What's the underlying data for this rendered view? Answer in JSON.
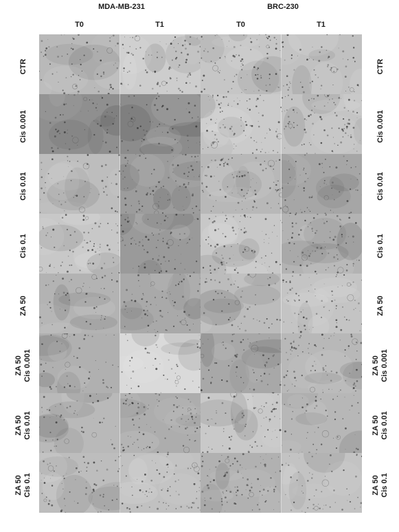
{
  "groups": [
    {
      "title": "MDA-MB-231",
      "columns": [
        "T0",
        "T1"
      ]
    },
    {
      "title": "BRC-230",
      "columns": [
        "T0",
        "T1"
      ]
    }
  ],
  "rows": [
    {
      "line1": "CTR",
      "line2": ""
    },
    {
      "line1": "Cis 0.001",
      "line2": ""
    },
    {
      "line1": "Cis 0.01",
      "line2": ""
    },
    {
      "line1": "Cis 0.1",
      "line2": ""
    },
    {
      "line1": "ZA 50",
      "line2": ""
    },
    {
      "line1": "ZA 50",
      "line2": "Cis 0.001"
    },
    {
      "line1": "ZA 50",
      "line2": "Cis 0.01"
    },
    {
      "line1": "ZA 50",
      "line2": "Cis 0.1"
    }
  ],
  "tones": [
    [
      "#b9b9b9",
      "#cdcdcd",
      "#c6c6c6",
      "#c1c1c1"
    ],
    [
      "#8f8f8f",
      "#8c8c8c",
      "#cbcbcb",
      "#c4c4c4"
    ],
    [
      "#bdbdbd",
      "#9c9c9c",
      "#b8b8b8",
      "#a6a6a6"
    ],
    [
      "#c8c8c8",
      "#9a9a9a",
      "#c8c8c8",
      "#b3b3b3"
    ],
    [
      "#b3b3b3",
      "#a9a9a9",
      "#bcbcbc",
      "#c4c4c4"
    ],
    [
      "#b0b0b0",
      "#dadada",
      "#a8a8a8",
      "#b8b8b8"
    ],
    [
      "#b9b9b9",
      "#adadad",
      "#c9c9c9",
      "#b7b7b7"
    ],
    [
      "#bdbdbd",
      "#c1c1c1",
      "#b1b1b1",
      "#c3c3c3"
    ]
  ]
}
